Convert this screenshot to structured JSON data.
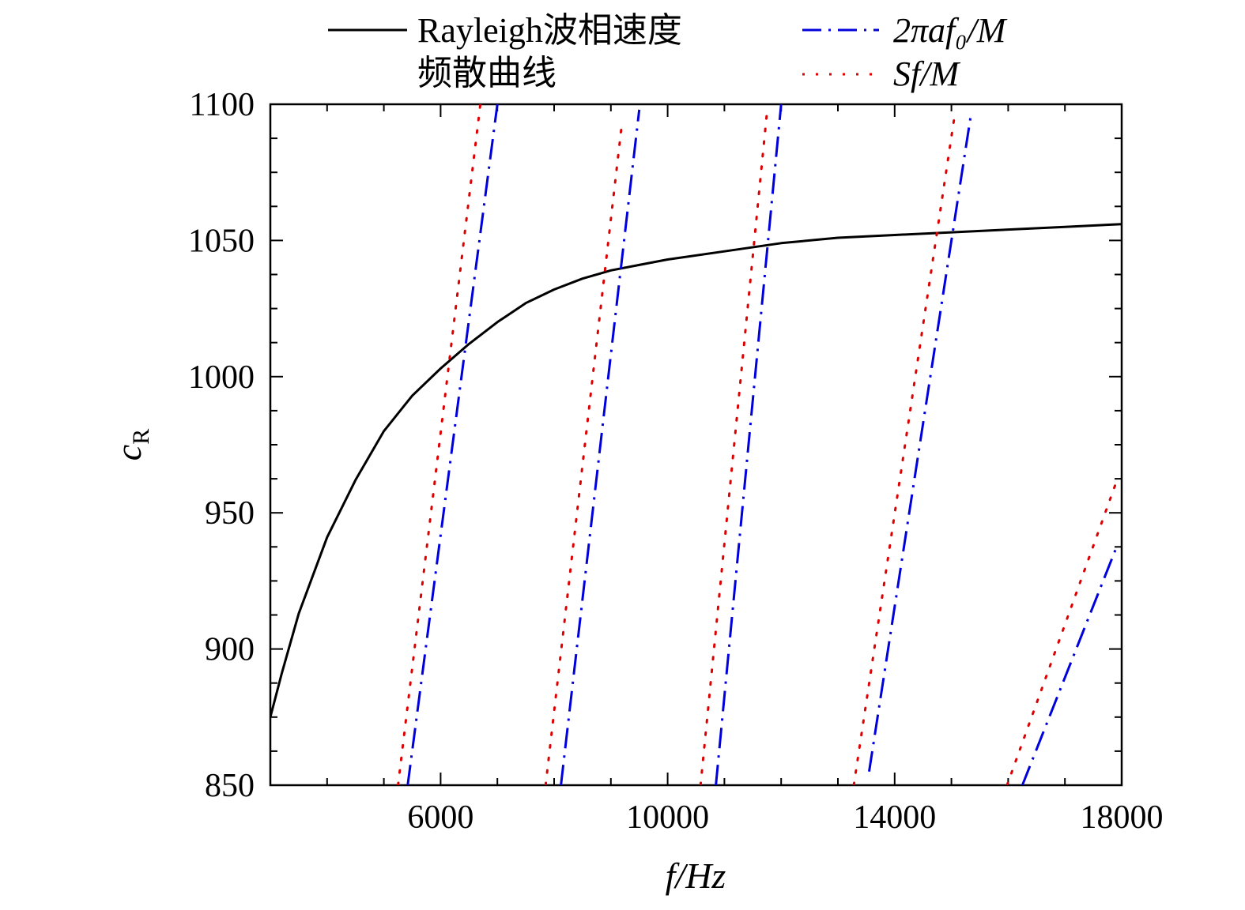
{
  "chart_data": {
    "type": "line",
    "xlabel": "f/Hz",
    "ylabel": "c_R",
    "ylabel_main": "c",
    "ylabel_sub": "R",
    "xlim": [
      3000,
      18000
    ],
    "ylim": [
      850,
      1100
    ],
    "x_ticks": [
      6000,
      10000,
      14000,
      18000
    ],
    "y_ticks": [
      850,
      900,
      950,
      1000,
      1050,
      1100
    ],
    "legend": {
      "position": "top",
      "entries": [
        {
          "key": "rayleigh",
          "line1": "Rayleigh波相速度",
          "line2": "频散曲线",
          "color": "#000000",
          "style": "solid"
        },
        {
          "key": "omega",
          "label": "2πaf₀/M",
          "color": "#0000dd",
          "style": "dashdot"
        },
        {
          "key": "sf",
          "label": "Sf/M",
          "color": "#dd0000",
          "style": "dotted"
        }
      ]
    },
    "series": [
      {
        "name": "Rayleigh波相速度 频散曲线",
        "color": "#000000",
        "style": "solid",
        "points": [
          [
            3000,
            875
          ],
          [
            3200,
            891
          ],
          [
            3500,
            913
          ],
          [
            4000,
            941
          ],
          [
            4500,
            962
          ],
          [
            5000,
            980
          ],
          [
            5500,
            993
          ],
          [
            6000,
            1003
          ],
          [
            6500,
            1012
          ],
          [
            7000,
            1020
          ],
          [
            7500,
            1027
          ],
          [
            8000,
            1032
          ],
          [
            8500,
            1036
          ],
          [
            9000,
            1039
          ],
          [
            9500,
            1041
          ],
          [
            10000,
            1043
          ],
          [
            11000,
            1046
          ],
          [
            12000,
            1049
          ],
          [
            13000,
            1051
          ],
          [
            14000,
            1052
          ],
          [
            15000,
            1053
          ],
          [
            16000,
            1054
          ],
          [
            17000,
            1055
          ],
          [
            18000,
            1056
          ]
        ]
      },
      {
        "name": "2πaf₀/M",
        "color": "#0000dd",
        "style": "dashdot",
        "segments": [
          [
            [
              5420,
              850
            ],
            [
              7000,
              1100
            ]
          ],
          [
            [
              8120,
              850
            ],
            [
              9500,
              1098
            ]
          ],
          [
            [
              10850,
              850
            ],
            [
              12000,
              1100
            ]
          ],
          [
            [
              13550,
              855
            ],
            [
              15350,
              1097
            ]
          ],
          [
            [
              16250,
              850
            ],
            [
              17920,
              938
            ]
          ]
        ]
      },
      {
        "name": "Sf/M",
        "color": "#dd0000",
        "style": "dotted",
        "segments": [
          [
            [
              5250,
              850
            ],
            [
              6700,
              1100
            ]
          ],
          [
            [
              7850,
              850
            ],
            [
              9200,
              1094
            ]
          ],
          [
            [
              10580,
              850
            ],
            [
              11750,
              1097
            ]
          ],
          [
            [
              13280,
              850
            ],
            [
              15050,
              1095
            ]
          ],
          [
            [
              15980,
              850
            ],
            [
              17900,
              961
            ]
          ]
        ]
      }
    ]
  }
}
